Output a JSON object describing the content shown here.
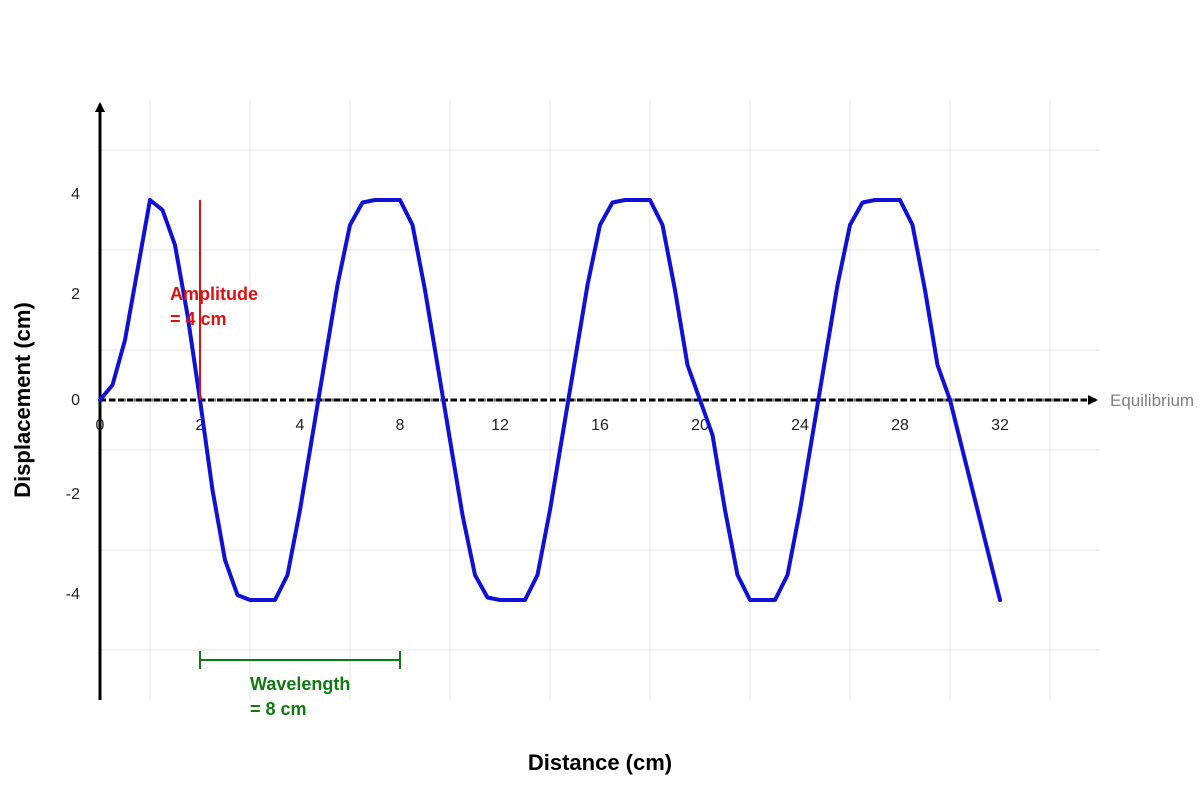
{
  "chart_data": {
    "type": "line",
    "xlabel": "Distance (cm)",
    "ylabel": "Displacement (cm)",
    "x_ticks": [
      {
        "value": 0,
        "label": "0"
      },
      {
        "value": 2,
        "label": "2"
      },
      {
        "value": 4,
        "label": "4"
      },
      {
        "value": 8,
        "label": "8"
      },
      {
        "value": 12,
        "label": "12"
      },
      {
        "value": 16,
        "label": "16"
      },
      {
        "value": 20,
        "label": "20"
      },
      {
        "value": 24,
        "label": "24"
      },
      {
        "value": 28,
        "label": "28"
      },
      {
        "value": 32,
        "label": "32"
      }
    ],
    "y_ticks": [
      {
        "value": 4,
        "label": "4"
      },
      {
        "value": 2,
        "label": "2"
      },
      {
        "value": 0,
        "label": "0"
      },
      {
        "value": -2,
        "label": "-2"
      },
      {
        "value": -4,
        "label": "-4"
      }
    ],
    "grid": true,
    "series": [
      {
        "x": [
          0,
          0.5,
          1,
          1.5,
          2,
          2.5,
          3,
          3.5,
          4,
          4.5,
          5,
          5.5,
          6,
          6.5,
          7,
          7.5,
          8,
          8.5,
          9,
          9.5,
          10,
          10.5,
          11,
          11.5,
          12,
          12.5,
          13,
          13.5,
          14,
          14.5,
          15,
          15.5,
          16,
          16.5,
          17,
          17.5,
          18,
          18.5,
          19,
          19.5,
          20,
          20.5,
          21,
          21.5,
          22,
          22.5,
          23,
          23.5,
          24,
          24.5,
          25,
          25.5,
          26,
          26.5,
          27,
          27.5,
          28,
          28.5,
          29,
          29.5,
          30,
          30.5,
          31,
          31.5,
          32,
          32.5,
          33,
          33.5,
          34,
          34.5,
          35,
          35.5,
          36
        ],
        "y": [
          0,
          0.3,
          1.2,
          2.6,
          4.0,
          3.8,
          3.1,
          1.7,
          0,
          -1.8,
          -3.2,
          -3.9,
          -4.0,
          -4.0,
          -4.0,
          -3.5,
          -2.2,
          -0.7,
          0.8,
          2.3,
          3.5,
          3.95,
          4.0,
          4.0,
          4.0,
          3.5,
          2.2,
          0.7,
          -0.8,
          -2.3,
          -3.5,
          -3.95,
          -4.0,
          -4.0,
          -4.0,
          -3.5,
          -2.2,
          -0.7,
          0.8,
          2.3,
          3.5,
          3.95,
          4.0,
          4.0,
          4.0,
          3.5,
          2.2,
          0.7,
          0,
          -0.7,
          -2.2,
          -3.5,
          -4.0,
          -4.0,
          -4.0,
          -3.5,
          -2.2,
          -0.7,
          0.8,
          2.3,
          3.5,
          3.95,
          4.0,
          4.0,
          4.0,
          3.5,
          2.2,
          0.7,
          0,
          -1,
          -2,
          -3,
          -4
        ],
        "color": "#1010d8"
      }
    ],
    "equilibrium": {
      "label": "Equilibrium",
      "y": 0
    },
    "annotations": {
      "amplitude": {
        "line1": "Amplitude",
        "line2": "= 4 cm",
        "x": 2,
        "y_from": 0,
        "y_to": 4,
        "color": "#e01010"
      },
      "wavelength": {
        "line1": "Wavelength",
        "line2": "= 8 cm",
        "x_from": 2,
        "x_to": 10,
        "color": "#107a10"
      }
    }
  }
}
